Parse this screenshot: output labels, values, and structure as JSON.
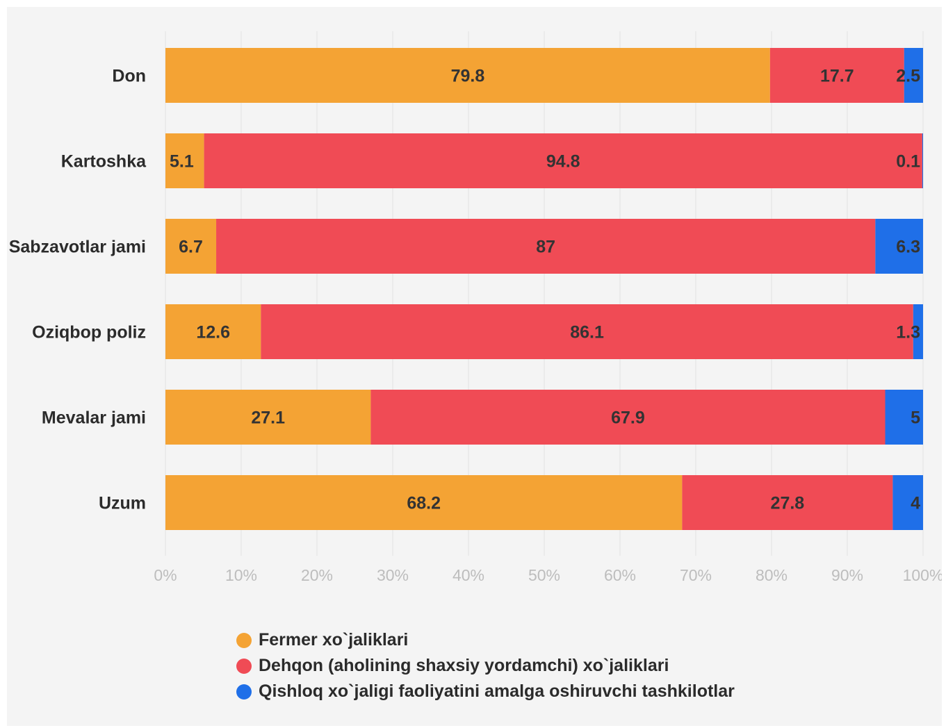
{
  "chart_data": {
    "type": "bar",
    "orientation": "horizontal",
    "stacked": true,
    "categories": [
      "Don",
      "Kartoshka",
      "Sabzavotlar jami",
      "Oziqbop poliz",
      "Mevalar jami",
      "Uzum"
    ],
    "series": [
      {
        "name": "Fermer xo`jaliklari",
        "color": "#f4a334",
        "values": [
          79.8,
          5.1,
          6.7,
          12.6,
          27.1,
          68.2
        ]
      },
      {
        "name": "Dehqon (aholining shaxsiy yordamchi) xo`jaliklari",
        "color": "#f04b55",
        "values": [
          17.7,
          94.8,
          87,
          86.1,
          67.9,
          27.8
        ]
      },
      {
        "name": "Qishloq xo`jaligi faoliyatini amalga oshiruvchi tashkilotlar",
        "color": "#1f6fe8",
        "values": [
          2.5,
          0.1,
          6.3,
          1.3,
          5,
          4
        ]
      }
    ],
    "xlim": [
      0,
      100
    ],
    "xticks": [
      "0%",
      "10%",
      "20%",
      "30%",
      "40%",
      "50%",
      "60%",
      "70%",
      "80%",
      "90%",
      "100%"
    ],
    "grid": "vertical",
    "legend_position": "bottom"
  }
}
